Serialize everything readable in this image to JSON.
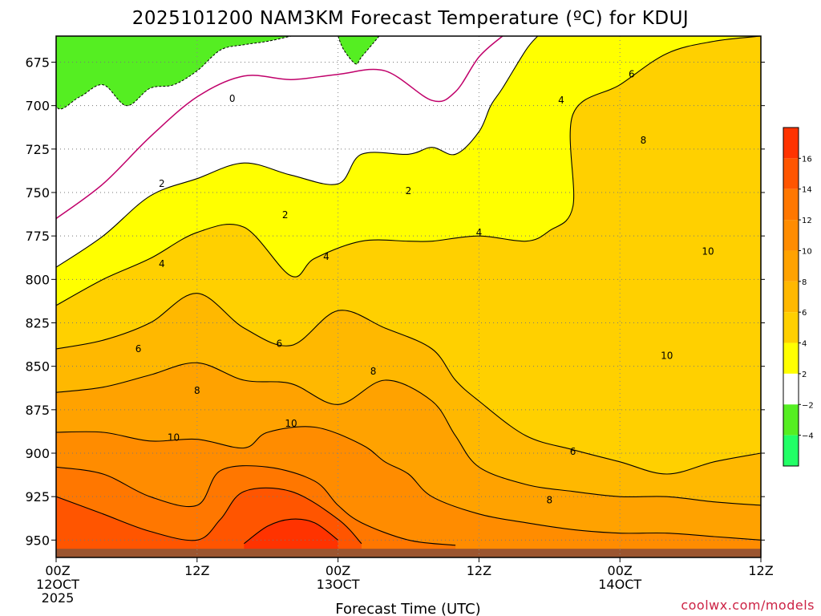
{
  "chart_data": {
    "type": "heatmap",
    "title": "2025101200 NAM3KM Forecast Temperature (ºC) for KDUJ",
    "xlabel": "Forecast Time (UTC)",
    "ylabel": "",
    "x_ticks": [
      {
        "hour": 0,
        "lines": [
          "00Z",
          "12OCT",
          "2025"
        ]
      },
      {
        "hour": 12,
        "lines": [
          "12Z"
        ]
      },
      {
        "hour": 24,
        "lines": [
          "00Z",
          "13OCT"
        ]
      },
      {
        "hour": 36,
        "lines": [
          "12Z"
        ]
      },
      {
        "hour": 48,
        "lines": [
          "00Z",
          "14OCT"
        ]
      },
      {
        "hour": 60,
        "lines": [
          "12Z"
        ]
      }
    ],
    "x_range": [
      0,
      60
    ],
    "y_ticks": [
      675,
      700,
      725,
      750,
      775,
      800,
      825,
      850,
      875,
      900,
      925,
      950
    ],
    "y_range": [
      660,
      960
    ],
    "y_reversed": true,
    "grid": true,
    "surface_level": 955,
    "colorbar": {
      "placement": "right",
      "levels": [
        {
          "from": 16,
          "to": 18,
          "color": "#ff3300"
        },
        {
          "from": 14,
          "to": 16,
          "color": "#ff5500"
        },
        {
          "from": 12,
          "to": 14,
          "color": "#ff7700"
        },
        {
          "from": 10,
          "to": 12,
          "color": "#ff8c00"
        },
        {
          "from": 8,
          "to": 10,
          "color": "#ffa200"
        },
        {
          "from": 6,
          "to": 8,
          "color": "#ffb800"
        },
        {
          "from": 4,
          "to": 6,
          "color": "#ffd000"
        },
        {
          "from": 2,
          "to": 4,
          "color": "#ffff00"
        },
        {
          "from": -2,
          "to": 2,
          "color": "#ffffff"
        },
        {
          "from": -4,
          "to": -2,
          "color": "#55ee22"
        },
        {
          "from": -6,
          "to": -4,
          "color": "#22ff66"
        }
      ],
      "tick_labels": [
        "16",
        "14",
        "12",
        "10",
        "8",
        "6",
        "4",
        "2",
        "−2",
        "−4"
      ]
    },
    "contours": [
      {
        "value": 0,
        "color": "#c0006a",
        "points": [
          [
            0,
            765
          ],
          [
            4,
            745
          ],
          [
            8,
            718
          ],
          [
            12,
            695
          ],
          [
            16,
            683
          ],
          [
            20,
            685
          ],
          [
            24,
            682
          ],
          [
            28,
            680
          ],
          [
            32,
            697
          ],
          [
            34,
            692
          ],
          [
            36,
            672
          ],
          [
            38,
            660
          ]
        ]
      },
      {
        "value": 2,
        "color": "#000000",
        "points": [
          [
            0,
            793
          ],
          [
            4,
            775
          ],
          [
            8,
            752
          ],
          [
            12,
            742
          ],
          [
            16,
            733
          ],
          [
            20,
            740
          ],
          [
            24,
            745
          ],
          [
            26,
            728
          ],
          [
            30,
            728
          ],
          [
            32,
            724
          ],
          [
            34,
            728
          ],
          [
            36,
            715
          ],
          [
            37,
            700
          ],
          [
            38,
            690
          ],
          [
            40,
            668
          ],
          [
            41,
            660
          ]
        ]
      },
      {
        "value": 4,
        "color": "#000000",
        "points": [
          [
            0,
            815
          ],
          [
            4,
            800
          ],
          [
            8,
            788
          ],
          [
            12,
            773
          ],
          [
            16,
            770
          ],
          [
            20,
            798
          ],
          [
            22,
            788
          ],
          [
            26,
            778
          ],
          [
            30,
            778
          ],
          [
            32,
            778
          ],
          [
            36,
            775
          ],
          [
            40,
            778
          ],
          [
            42,
            772
          ],
          [
            44,
            758
          ],
          [
            44,
            705
          ],
          [
            48,
            688
          ],
          [
            52,
            670
          ],
          [
            56,
            663
          ],
          [
            60,
            660
          ]
        ]
      },
      {
        "value": 6,
        "color": "#000000",
        "points": [
          [
            0,
            840
          ],
          [
            4,
            835
          ],
          [
            8,
            825
          ],
          [
            12,
            808
          ],
          [
            16,
            828
          ],
          [
            20,
            838
          ],
          [
            24,
            818
          ],
          [
            28,
            828
          ],
          [
            32,
            840
          ],
          [
            34,
            858
          ],
          [
            36,
            870
          ],
          [
            40,
            890
          ],
          [
            44,
            898
          ],
          [
            48,
            905
          ],
          [
            52,
            912
          ],
          [
            56,
            905
          ],
          [
            60,
            900
          ]
        ]
      },
      {
        "value": 8,
        "color": "#000000",
        "points": [
          [
            0,
            865
          ],
          [
            4,
            862
          ],
          [
            8,
            855
          ],
          [
            12,
            848
          ],
          [
            16,
            858
          ],
          [
            20,
            860
          ],
          [
            24,
            872
          ],
          [
            28,
            858
          ],
          [
            32,
            870
          ],
          [
            34,
            890
          ],
          [
            36,
            908
          ],
          [
            40,
            918
          ],
          [
            44,
            922
          ],
          [
            48,
            925
          ],
          [
            52,
            925
          ],
          [
            56,
            928
          ],
          [
            60,
            930
          ]
        ]
      },
      {
        "value": 10,
        "color": "#000000",
        "points": [
          [
            0,
            888
          ],
          [
            4,
            888
          ],
          [
            8,
            893
          ],
          [
            12,
            892
          ],
          [
            16,
            897
          ],
          [
            18,
            888
          ],
          [
            22,
            885
          ],
          [
            26,
            895
          ],
          [
            28,
            905
          ],
          [
            30,
            912
          ],
          [
            32,
            925
          ],
          [
            36,
            935
          ],
          [
            40,
            940
          ],
          [
            44,
            944
          ],
          [
            48,
            946
          ],
          [
            52,
            946
          ],
          [
            56,
            948
          ],
          [
            60,
            950
          ]
        ]
      },
      {
        "value": 12,
        "color": "#000000",
        "points": [
          [
            0,
            908
          ],
          [
            4,
            912
          ],
          [
            8,
            925
          ],
          [
            12,
            930
          ],
          [
            14,
            910
          ],
          [
            18,
            908
          ],
          [
            22,
            916
          ],
          [
            24,
            930
          ],
          [
            26,
            940
          ],
          [
            30,
            950
          ],
          [
            34,
            953
          ]
        ]
      },
      {
        "value": 14,
        "color": "#000000",
        "points": [
          [
            0,
            925
          ],
          [
            4,
            935
          ],
          [
            8,
            945
          ],
          [
            12,
            950
          ],
          [
            14,
            938
          ],
          [
            16,
            922
          ],
          [
            20,
            922
          ],
          [
            24,
            938
          ],
          [
            26,
            952
          ]
        ]
      },
      {
        "value": 16,
        "color": "#000000",
        "points": [
          [
            16,
            952
          ],
          [
            18,
            942
          ],
          [
            20,
            938
          ],
          [
            22,
            940
          ],
          [
            24,
            950
          ]
        ]
      }
    ],
    "contour_labels": [
      {
        "text": "0",
        "hour": 15,
        "level": 696
      },
      {
        "text": "2",
        "hour": 9,
        "level": 745
      },
      {
        "text": "2",
        "hour": 19.5,
        "level": 763
      },
      {
        "text": "2",
        "hour": 30,
        "level": 749
      },
      {
        "text": "4",
        "hour": 9,
        "level": 791
      },
      {
        "text": "4",
        "hour": 23,
        "level": 787
      },
      {
        "text": "4",
        "hour": 36,
        "level": 773
      },
      {
        "text": "4",
        "hour": 43,
        "level": 697
      },
      {
        "text": "6",
        "hour": 7,
        "level": 840
      },
      {
        "text": "6",
        "hour": 19,
        "level": 837
      },
      {
        "text": "6",
        "hour": 44,
        "level": 899
      },
      {
        "text": "6",
        "hour": 49,
        "level": 682
      },
      {
        "text": "8",
        "hour": 12,
        "level": 864
      },
      {
        "text": "8",
        "hour": 27,
        "level": 853
      },
      {
        "text": "8",
        "hour": 42,
        "level": 927
      },
      {
        "text": "8",
        "hour": 50,
        "level": 720
      },
      {
        "text": "10",
        "hour": 10,
        "level": 891
      },
      {
        "text": "10",
        "hour": 20,
        "level": 883
      },
      {
        "text": "10",
        "hour": 52,
        "level": 844
      },
      {
        "text": "10",
        "hour": 55.5,
        "level": 784
      }
    ]
  },
  "credit": "coolwx.com/models"
}
